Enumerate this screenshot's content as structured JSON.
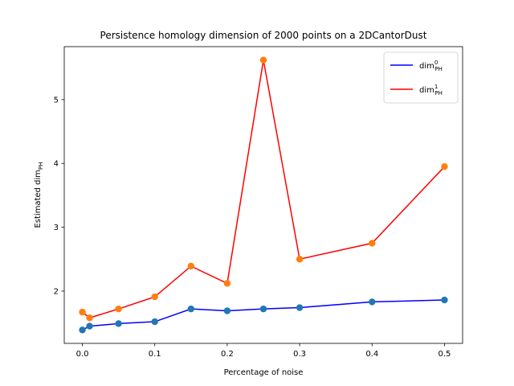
{
  "chart_data": {
    "type": "line",
    "title": "Persistence homology dimension of 2000 points on a 2DCantorDust",
    "xlabel": "Percentage of noise",
    "ylabel": {
      "base": "Estimated dim",
      "sub": "PH"
    },
    "xlim": [
      -0.025,
      0.525
    ],
    "ylim": [
      1.18,
      5.83
    ],
    "xticks": [
      0.0,
      0.1,
      0.2,
      0.3,
      0.4,
      0.5
    ],
    "xtick_labels": [
      "0.0",
      "0.1",
      "0.2",
      "0.3",
      "0.4",
      "0.5"
    ],
    "yticks": [
      2,
      3,
      4,
      5
    ],
    "ytick_labels": [
      "2",
      "3",
      "4",
      "5"
    ],
    "grid": false,
    "legend_position": "top-right",
    "x": [
      0.0,
      0.01,
      0.05,
      0.1,
      0.15,
      0.2,
      0.25,
      0.3,
      0.4,
      0.5
    ],
    "series": [
      {
        "name": {
          "base": "dim",
          "sup": "0",
          "sub": "PH"
        },
        "line_color": "#0000ff",
        "marker_color": "#1f77b4",
        "values": [
          1.39,
          1.45,
          1.49,
          1.52,
          1.72,
          1.69,
          1.72,
          1.74,
          1.83,
          1.86
        ]
      },
      {
        "name": {
          "base": "dim",
          "sup": "1",
          "sub": "PH"
        },
        "line_color": "#ff0000",
        "marker_color": "#ff7f0e",
        "values": [
          1.67,
          1.58,
          1.72,
          1.91,
          2.39,
          2.12,
          5.62,
          2.5,
          2.75,
          3.95
        ]
      }
    ]
  }
}
